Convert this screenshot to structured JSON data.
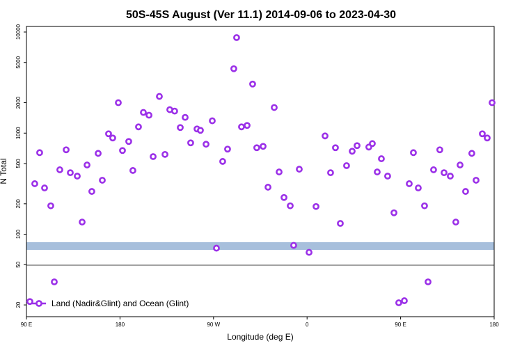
{
  "chart_data": {
    "type": "scatter",
    "title": "50S-45S August (Ver 11.1)   2014-09-06 to 2023-04-30",
    "x_label": "Longitude (deg E)",
    "y_label": "N Total",
    "log_y": true,
    "legend_position": "lower left",
    "xlim": [
      90,
      540
    ],
    "xticks": [
      {
        "value": 90,
        "label": "90 E"
      },
      180,
      {
        "value": 270,
        "label": "90 W"
      },
      {
        "value": 360,
        "label": "0"
      },
      {
        "value": 450,
        "label": "90 E"
      },
      {
        "value": 540,
        "label": "180"
      }
    ],
    "ylim": [
      15.3,
      11350
    ],
    "yticks": [
      20,
      50,
      100,
      200,
      500,
      1000,
      2000,
      5000,
      10000
    ],
    "series": [
      {
        "name": "Land (Nadir&Glint) and Ocean (Glint)",
        "color": "#9b30e8",
        "x": [
          93.3,
          98,
          102.7,
          107.4,
          113.4,
          116.8,
          122.1,
          128.2,
          132.2,
          138.9,
          143.6,
          148.3,
          152.9,
          159,
          163,
          169,
          173,
          178.4,
          182.4,
          188.4,
          192.4,
          197.8,
          202.5,
          207.9,
          211.9,
          217.9,
          223.3,
          227.9,
          232.6,
          238,
          242.7,
          248,
          254.1,
          257.4,
          262.8,
          268.8,
          272.8,
          278.8,
          283.5,
          289.5,
          292.2,
          296.9,
          302.3,
          307.6,
          311.6,
          317.7,
          322.4,
          328.4,
          333.1,
          337.8,
          343.8,
          347.1,
          352.5,
          361.9,
          368.6,
          377.3,
          382.6,
          387.3,
          392,
          398,
          403.4,
          408.1,
          419.4,
          422.8,
          427.5,
          431.5,
          437.5,
          443.6,
          448.2,
          453.6,
          458.3,
          462.3,
          467,
          473,
          476.4,
          481.7,
          487.7,
          491.8,
          497.8,
          503.1,
          507.2,
          512.5,
          518.5,
          522.6,
          528.6,
          533.3,
          538
        ],
        "values": [
          21.6,
          316,
          641,
          287,
          191,
          33.8,
          434,
          684,
          406,
          376,
          132,
          484,
          265,
          631,
          342,
          985,
          895,
          2000,
          673,
          827,
          427,
          1153,
          1602,
          1504,
          586,
          2306,
          616,
          1706,
          1652,
          1136,
          1432,
          801,
          1100,
          1066,
          777,
          1324,
          72.8,
          525,
          695,
          4335,
          8810,
          1153,
          1191,
          3058,
          717,
          740,
          292,
          1792,
          413,
          231,
          191,
          77.6,
          440,
          66.2,
          188,
          938,
          406,
          717,
          128,
          477,
          662,
          752,
          728,
          788,
          413,
          558,
          376,
          163,
          21.0,
          22.0,
          316,
          641,
          287,
          191,
          33.8,
          434,
          684,
          406,
          376,
          132,
          484,
          265,
          631,
          342,
          985,
          895,
          2000
        ]
      }
    ]
  }
}
